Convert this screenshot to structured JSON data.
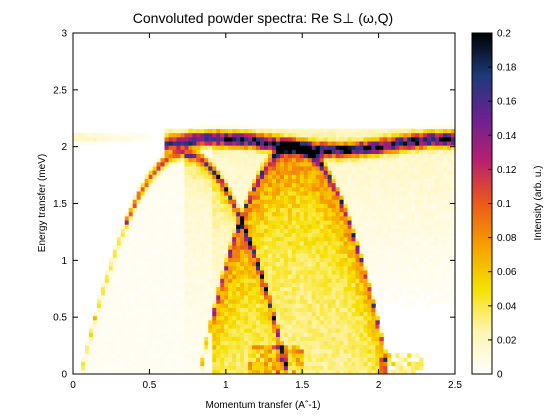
{
  "chart_data": {
    "type": "heatmap",
    "title": "Convoluted powder spectra: Re S⊥ (ω,Q)",
    "xlabel": "Momentum transfer (Aˆ-1)",
    "ylabel": "Energy transfer (meV)",
    "colorbar_label": "Intensity (arb. u.)",
    "xlim": [
      0,
      2.5
    ],
    "ylim": [
      0,
      3
    ],
    "clim": [
      0,
      0.2
    ],
    "x_ticks": [
      "0",
      "0.5",
      "1",
      "1.5",
      "2",
      "2.5"
    ],
    "y_ticks": [
      "0",
      "0.5",
      "1",
      "1.5",
      "2",
      "2.5",
      "3"
    ],
    "colorbar_ticks": [
      "0",
      "0.02",
      "0.04",
      "0.06",
      "0.08",
      "0.1",
      "0.12",
      "0.14",
      "0.16",
      "0.18",
      "0.2"
    ],
    "colormap": [
      "#ffffff",
      "#fff4b0",
      "#f5e000",
      "#f6a000",
      "#ea5a18",
      "#b8206e",
      "#6a2292",
      "#1c3a78",
      "#000000"
    ],
    "features": [
      {
        "name": "acoustic-dome",
        "q_center": 0.73,
        "q_halfwidth": 0.68,
        "e_max": 1.95
      },
      {
        "name": "secondary-arc",
        "q_center": 1.45,
        "q_halfwidth": 0.62,
        "e_max": 2.02
      },
      {
        "name": "flat-band",
        "e": 2.02,
        "q_from": 0.6,
        "q_to": 2.5
      }
    ]
  }
}
